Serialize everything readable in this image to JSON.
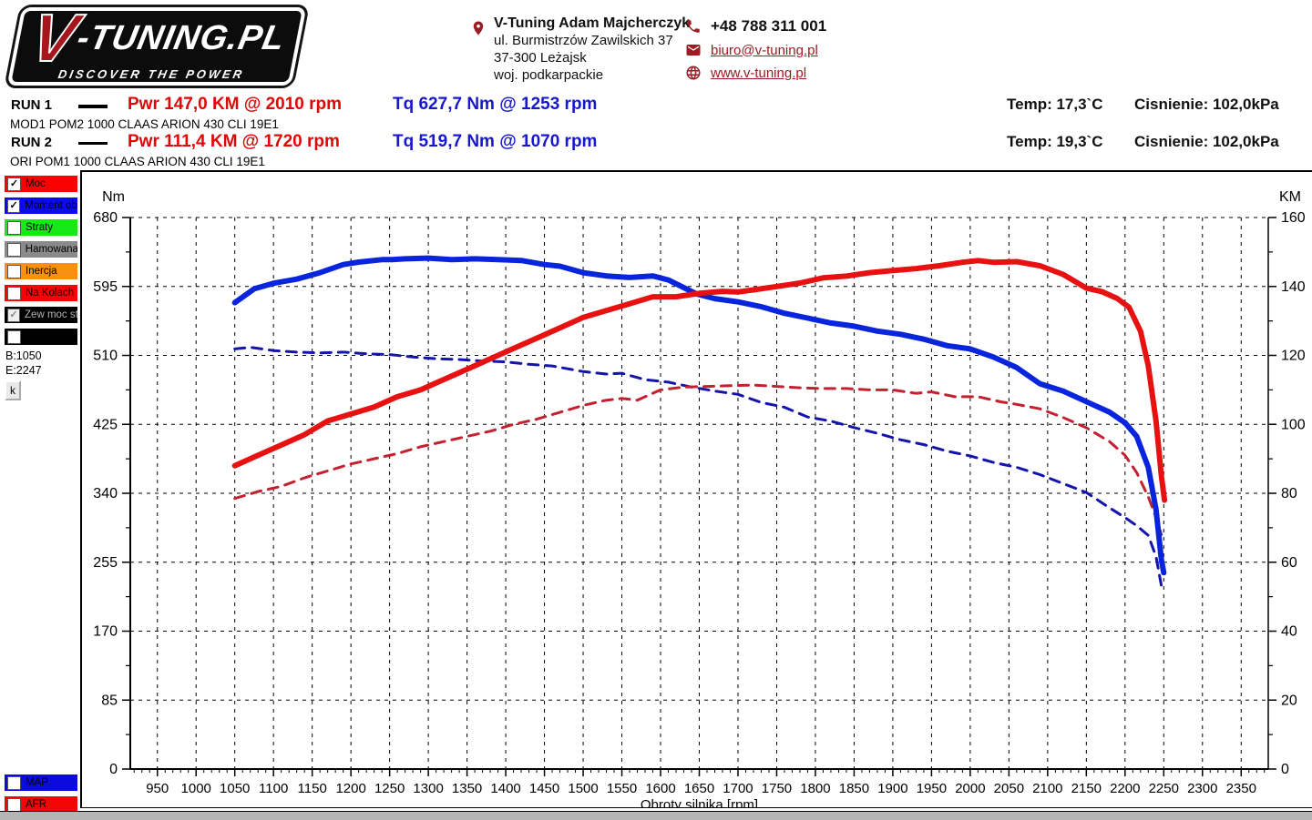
{
  "header": {
    "logo": {
      "v": "V",
      "rest": "-TUNING.PL",
      "tagline": "DISCOVER THE POWER"
    },
    "contact": {
      "name": "V-Tuning Adam Majcherczyk",
      "address1": "ul. Burmistrzów Zawilskich 37",
      "address2": "37-300 Leżajsk",
      "address3": "woj. podkarpackie"
    },
    "phone": "+48 788 311 001",
    "email": "biuro@v-tuning.pl",
    "website": "www.v-tuning.pl"
  },
  "runs": [
    {
      "label": "RUN 1",
      "pwr": "Pwr  147,0 KM @ 2010 rpm",
      "tq": "Tq 627,7 Nm @ 1253 rpm",
      "temp": "Temp: 17,3`C",
      "pressure": "Cisnienie: 102,0kPa",
      "desc": "MOD1 POM2 1000 CLAAS ARION 430 CLI 19E1"
    },
    {
      "label": "RUN 2",
      "pwr": "Pwr  111,4 KM @ 1720 rpm",
      "tq": "Tq 519,7 Nm @ 1070 rpm",
      "temp": "Temp: 19,3`C",
      "pressure": "Cisnienie: 102,0kPa",
      "desc": "ORI POM1 1000 CLAAS ARION 430 CLI 19E1"
    }
  ],
  "legend": {
    "items": [
      {
        "label": "Moc",
        "color": "#fb0202",
        "checked": true,
        "disabled": false
      },
      {
        "label": "Moment obr",
        "color": "#0b0bf2",
        "checked": true,
        "disabled": false
      },
      {
        "label": "Straty",
        "color": "#18e818",
        "checked": false,
        "disabled": false
      },
      {
        "label": "Hamowana",
        "color": "#8a8a8a",
        "checked": false,
        "disabled": false
      },
      {
        "label": "Inercja",
        "color": "#f89010",
        "checked": false,
        "disabled": false
      },
      {
        "label": "Na Kolach",
        "color": "#fb0202",
        "checked": false,
        "disabled": false
      },
      {
        "label": "Zew moc str",
        "color": "#000000",
        "checked": true,
        "disabled": true
      },
      {
        "label": "",
        "color": "#000000",
        "checked": false,
        "disabled": false
      }
    ],
    "begin": "B:1050",
    "end": "E:2247",
    "k_button": "k",
    "bottom_items": [
      {
        "label": "MAP",
        "color": "#0b0bdd",
        "checked": false,
        "disabled": false
      },
      {
        "label": "AFR",
        "color": "#f20606",
        "checked": false,
        "disabled": false
      }
    ]
  },
  "chart_data": {
    "type": "line",
    "xlabel": "Obroty silnika [rpm]",
    "grid": "dashed",
    "left_axis": {
      "title": "Nm",
      "min": 0,
      "max": 680,
      "step": 85
    },
    "right_axis": {
      "title": "KM",
      "min": 0,
      "max": 160,
      "step": 20
    },
    "x_axis": {
      "min": 915,
      "max": 2385,
      "tick_start": 950,
      "tick_end": 2350,
      "tick_step": 50,
      "minor_step": 10
    },
    "series": [
      {
        "name": "run1-torque-mod",
        "axis": "left",
        "style": "solid",
        "color": "#0824dc",
        "width": 6,
        "points": [
          [
            1050,
            575
          ],
          [
            1075,
            592
          ],
          [
            1100,
            599
          ],
          [
            1130,
            604
          ],
          [
            1160,
            612
          ],
          [
            1190,
            622
          ],
          [
            1210,
            625
          ],
          [
            1240,
            628
          ],
          [
            1253,
            628
          ],
          [
            1270,
            629
          ],
          [
            1300,
            630
          ],
          [
            1330,
            628
          ],
          [
            1360,
            629
          ],
          [
            1390,
            628
          ],
          [
            1420,
            627
          ],
          [
            1450,
            622
          ],
          [
            1470,
            620
          ],
          [
            1500,
            612
          ],
          [
            1530,
            608
          ],
          [
            1560,
            606
          ],
          [
            1590,
            608
          ],
          [
            1610,
            603
          ],
          [
            1646,
            586
          ],
          [
            1670,
            580
          ],
          [
            1700,
            576
          ],
          [
            1730,
            570
          ],
          [
            1760,
            562
          ],
          [
            1790,
            556
          ],
          [
            1820,
            550
          ],
          [
            1850,
            546
          ],
          [
            1880,
            540
          ],
          [
            1910,
            536
          ],
          [
            1940,
            530
          ],
          [
            1970,
            522
          ],
          [
            2000,
            518
          ],
          [
            2030,
            508
          ],
          [
            2060,
            495
          ],
          [
            2090,
            475
          ],
          [
            2120,
            466
          ],
          [
            2150,
            453
          ],
          [
            2180,
            440
          ],
          [
            2200,
            427
          ],
          [
            2215,
            410
          ],
          [
            2230,
            372
          ],
          [
            2240,
            320
          ],
          [
            2247,
            258
          ],
          [
            2250,
            242
          ]
        ]
      },
      {
        "name": "run2-torque-ori",
        "axis": "left",
        "style": "dashed",
        "color": "#1414ad",
        "width": 3,
        "points": [
          [
            1050,
            518
          ],
          [
            1070,
            520
          ],
          [
            1100,
            516
          ],
          [
            1130,
            514
          ],
          [
            1160,
            513
          ],
          [
            1190,
            514
          ],
          [
            1220,
            512
          ],
          [
            1250,
            511
          ],
          [
            1280,
            508
          ],
          [
            1310,
            506
          ],
          [
            1340,
            505
          ],
          [
            1370,
            503
          ],
          [
            1400,
            502
          ],
          [
            1430,
            499
          ],
          [
            1460,
            497
          ],
          [
            1500,
            490
          ],
          [
            1530,
            487
          ],
          [
            1550,
            488
          ],
          [
            1580,
            480
          ],
          [
            1610,
            477
          ],
          [
            1640,
            471
          ],
          [
            1670,
            466
          ],
          [
            1700,
            462
          ],
          [
            1730,
            452
          ],
          [
            1760,
            446
          ],
          [
            1790,
            434
          ],
          [
            1820,
            429
          ],
          [
            1850,
            421
          ],
          [
            1880,
            414
          ],
          [
            1910,
            406
          ],
          [
            1940,
            400
          ],
          [
            1970,
            392
          ],
          [
            2000,
            386
          ],
          [
            2030,
            378
          ],
          [
            2060,
            372
          ],
          [
            2090,
            363
          ],
          [
            2120,
            352
          ],
          [
            2150,
            341
          ],
          [
            2180,
            322
          ],
          [
            2200,
            310
          ],
          [
            2215,
            300
          ],
          [
            2230,
            288
          ],
          [
            2240,
            262
          ],
          [
            2247,
            226
          ]
        ]
      },
      {
        "name": "run1-power-mod",
        "axis": "right",
        "style": "solid",
        "color": "#e81111",
        "width": 6,
        "points": [
          [
            1050,
            88
          ],
          [
            1080,
            91
          ],
          [
            1110,
            94
          ],
          [
            1140,
            97
          ],
          [
            1170,
            101
          ],
          [
            1200,
            103
          ],
          [
            1230,
            105
          ],
          [
            1260,
            108
          ],
          [
            1290,
            110
          ],
          [
            1320,
            113
          ],
          [
            1350,
            116
          ],
          [
            1380,
            119
          ],
          [
            1410,
            122
          ],
          [
            1440,
            125
          ],
          [
            1470,
            128
          ],
          [
            1500,
            131
          ],
          [
            1530,
            133
          ],
          [
            1560,
            135
          ],
          [
            1590,
            137
          ],
          [
            1620,
            137
          ],
          [
            1650,
            138
          ],
          [
            1680,
            138.6
          ],
          [
            1700,
            138.4
          ],
          [
            1720,
            139
          ],
          [
            1750,
            140
          ],
          [
            1780,
            141
          ],
          [
            1810,
            142.5
          ],
          [
            1840,
            143
          ],
          [
            1870,
            144
          ],
          [
            1900,
            144.6
          ],
          [
            1930,
            145.2
          ],
          [
            1960,
            146
          ],
          [
            1990,
            147
          ],
          [
            2010,
            147.5
          ],
          [
            2030,
            147
          ],
          [
            2060,
            147.2
          ],
          [
            2090,
            146
          ],
          [
            2120,
            143.5
          ],
          [
            2150,
            139.5
          ],
          [
            2170,
            138.5
          ],
          [
            2190,
            136.5
          ],
          [
            2205,
            134
          ],
          [
            2220,
            127
          ],
          [
            2230,
            117
          ],
          [
            2240,
            101
          ],
          [
            2247,
            85
          ],
          [
            2251,
            78
          ]
        ]
      },
      {
        "name": "run2-power-ori",
        "axis": "right",
        "style": "dashed",
        "color": "#c52030",
        "width": 3,
        "points": [
          [
            1050,
            78.5
          ],
          [
            1080,
            80.5
          ],
          [
            1110,
            82
          ],
          [
            1140,
            84.5
          ],
          [
            1170,
            86.5
          ],
          [
            1200,
            88.5
          ],
          [
            1230,
            90
          ],
          [
            1260,
            91.5
          ],
          [
            1290,
            93.5
          ],
          [
            1320,
            95
          ],
          [
            1350,
            96.5
          ],
          [
            1380,
            98
          ],
          [
            1410,
            100
          ],
          [
            1440,
            101.5
          ],
          [
            1470,
            103.5
          ],
          [
            1500,
            105.5
          ],
          [
            1530,
            107
          ],
          [
            1550,
            107.5
          ],
          [
            1570,
            107
          ],
          [
            1600,
            110
          ],
          [
            1630,
            110.8
          ],
          [
            1660,
            111
          ],
          [
            1690,
            111.2
          ],
          [
            1720,
            111.4
          ],
          [
            1750,
            111
          ],
          [
            1780,
            110.6
          ],
          [
            1810,
            110.4
          ],
          [
            1840,
            110.4
          ],
          [
            1870,
            110
          ],
          [
            1900,
            110
          ],
          [
            1930,
            109
          ],
          [
            1950,
            109.4
          ],
          [
            1980,
            108
          ],
          [
            2010,
            108
          ],
          [
            2040,
            106.5
          ],
          [
            2060,
            105.8
          ],
          [
            2090,
            104.5
          ],
          [
            2120,
            102
          ],
          [
            2150,
            99
          ],
          [
            2180,
            95
          ],
          [
            2200,
            91
          ],
          [
            2215,
            86
          ],
          [
            2230,
            79
          ],
          [
            2240,
            73
          ],
          [
            2247,
            68
          ]
        ]
      }
    ]
  }
}
